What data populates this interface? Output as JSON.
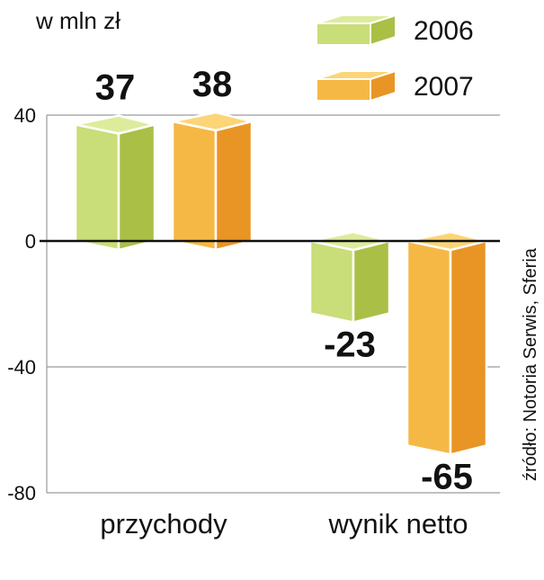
{
  "chart_data": {
    "type": "bar",
    "unit_label": "w mln zł",
    "source": "źródło: Notoria Serwis, Sferia",
    "categories": [
      "przychody",
      "wynik netto"
    ],
    "series": [
      {
        "name": "2006",
        "values": [
          37,
          -23
        ]
      },
      {
        "name": "2007",
        "values": [
          38,
          -65
        ]
      }
    ],
    "ylim": [
      -80,
      40
    ],
    "yticks": [
      40,
      0,
      -40,
      -80
    ],
    "grid": true,
    "legend_position": "top-right"
  },
  "colors": {
    "s2006_front": "#c9dd78",
    "s2006_side": "#a9bf46",
    "s2006_top": "#dcec9c",
    "s2007_front": "#f6b845",
    "s2007_side": "#e99525",
    "s2007_top": "#fbd577",
    "grid": "#9a9a9a",
    "zero_line": "#111111"
  }
}
